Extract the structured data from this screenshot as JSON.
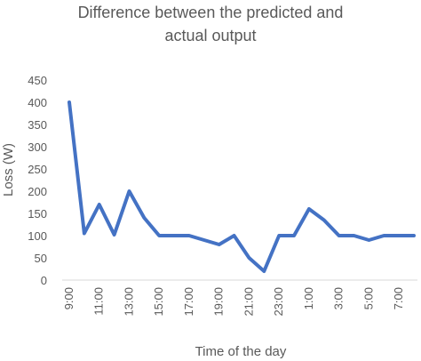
{
  "chart_data": {
    "type": "line",
    "title_lines": [
      "Difference between the predicted and",
      "actual output"
    ],
    "xlabel": "Time of the day",
    "ylabel": "Loss (W)",
    "ylim": [
      0,
      450
    ],
    "yticks": [
      0,
      50,
      100,
      150,
      200,
      250,
      300,
      350,
      400,
      450
    ],
    "grid": false,
    "legend": "none",
    "line_color": "#4472C4",
    "categories": [
      "9:00",
      "10:00",
      "11:00",
      "12:00",
      "13:00",
      "14:00",
      "15:00",
      "16:00",
      "17:00",
      "18:00",
      "19:00",
      "20:00",
      "21:00",
      "22:00",
      "23:00",
      "0:00",
      "1:00",
      "2:00",
      "3:00",
      "4:00",
      "5:00",
      "6:00",
      "7:00",
      "8:00"
    ],
    "xtick_labels": [
      "9:00",
      "11:00",
      "13:00",
      "15:00",
      "17:00",
      "19:00",
      "21:00",
      "23:00",
      "1:00",
      "3:00",
      "5:00",
      "7:00"
    ],
    "series": [
      {
        "values": [
          400,
          105,
          170,
          102,
          200,
          140,
          100,
          100,
          100,
          90,
          80,
          100,
          50,
          20,
          100,
          100,
          160,
          135,
          100,
          100,
          90,
          100,
          100,
          100
        ]
      }
    ]
  }
}
